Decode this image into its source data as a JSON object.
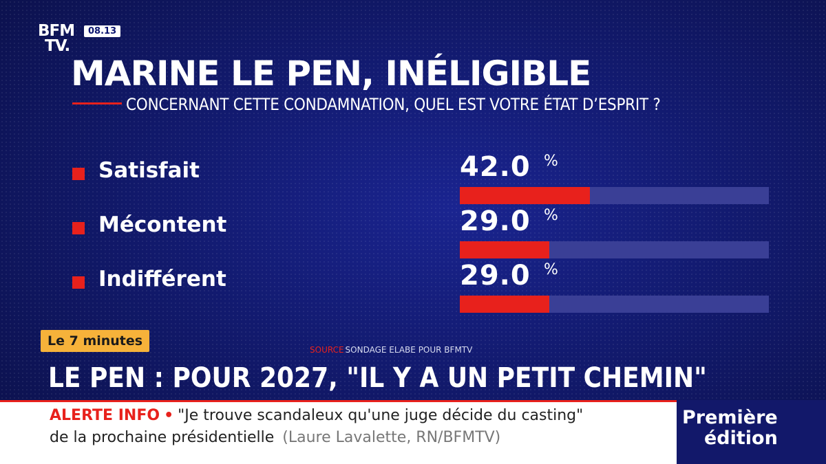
{
  "header": {
    "logo_line1": "BFM",
    "logo_line2": "TV.",
    "clock": "08.13"
  },
  "chart_data": {
    "type": "bar",
    "title": "MARINE LE PEN, INÉLIGIBLE",
    "subtitle": "CONCERNANT CETTE CONDAMNATION, QUEL EST VOTRE ÉTAT D’ESPRIT ?",
    "categories": [
      "Satisfait",
      "Mécontent",
      "Indifférent"
    ],
    "values": [
      42.0,
      29.0,
      29.0
    ],
    "value_labels": [
      "42.0",
      "29.0",
      "29.0"
    ],
    "unit": "%",
    "ylim": [
      0,
      100
    ],
    "colors": {
      "bar": "#e8211c",
      "track": "#3a3f96"
    }
  },
  "program_tag": "Le 7 minutes",
  "source": {
    "label": "SOURCE",
    "text": "SONDAGE ELABE POUR BFMTV"
  },
  "headline": "LE PEN : POUR 2027, \"IL Y A UN PETIT CHEMIN\"",
  "ticker": {
    "alert_label": "ALERTE INFO",
    "separator": "•",
    "quote_line1": "\"Je trouve scandaleux qu'une juge décide du casting\"",
    "quote_line2": "de la prochaine présidentielle",
    "credit": "(Laure Lavalette, RN/BFMTV)"
  },
  "brand": {
    "line1": "Première",
    "line2": "édition"
  }
}
